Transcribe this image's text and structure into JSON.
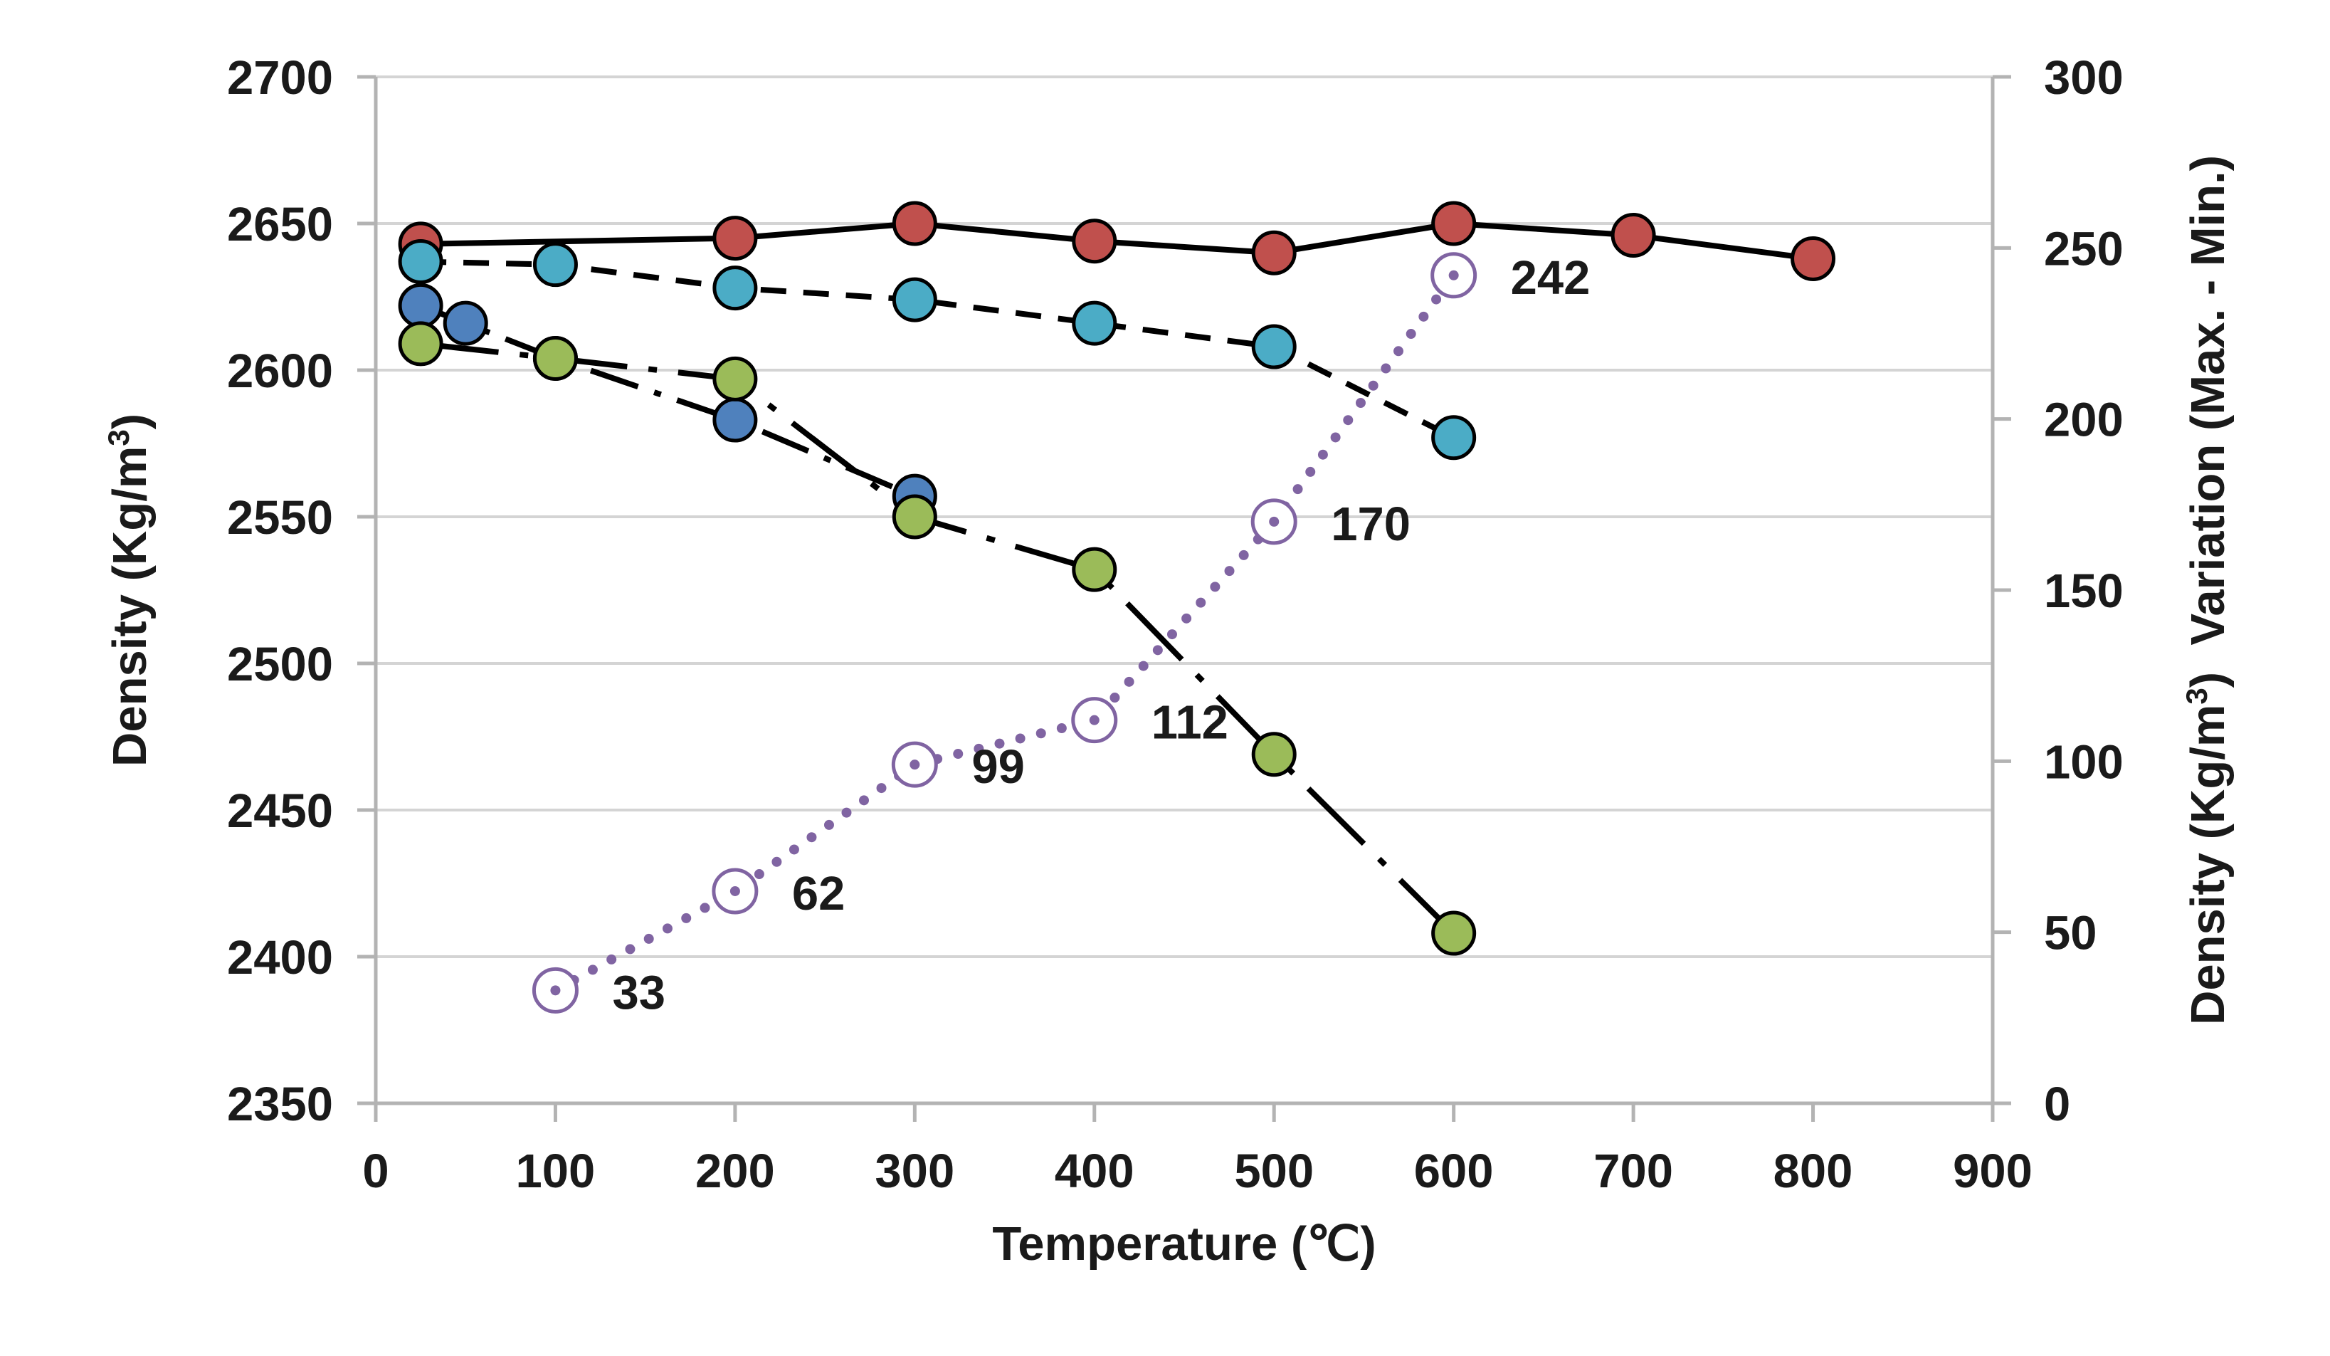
{
  "chart_data": {
    "type": "line",
    "title": "",
    "xlabel": "Temperature (℃)",
    "ylabel": "Density (Kg/m3)",
    "ylabel_parts": {
      "base": "Density (Kg/m",
      "sup": "3",
      "end": ")"
    },
    "y2label": "Density (Kg/m3)  Variation (Max. - Min.)",
    "y2label_parts": {
      "base": "Density (Kg/m",
      "sup": "3",
      "end": ")  Variation (Max. - Min.)"
    },
    "xlim": [
      0,
      900
    ],
    "ylim": [
      2350,
      2700
    ],
    "y2lim": [
      0,
      300
    ],
    "x_ticks": [
      0,
      100,
      200,
      300,
      400,
      500,
      600,
      700,
      800,
      900
    ],
    "y_ticks": [
      2350,
      2400,
      2450,
      2500,
      2550,
      2600,
      2650,
      2700
    ],
    "y2_ticks": [
      0,
      50,
      100,
      150,
      200,
      250,
      300
    ],
    "grid": "horizontal",
    "series": [
      {
        "name": "red series",
        "axis": "left",
        "line": "solid",
        "color": "#c0504d",
        "x": [
          25,
          200,
          300,
          400,
          500,
          600,
          700,
          800
        ],
        "y": [
          2643,
          2645,
          2650,
          2644,
          2640,
          2650,
          2646,
          2638
        ]
      },
      {
        "name": "cyan series",
        "axis": "left",
        "line": "dashed",
        "color": "#4bacc6",
        "x": [
          25,
          100,
          200,
          300,
          400,
          500,
          600
        ],
        "y": [
          2637,
          2636,
          2628,
          2624,
          2616,
          2608,
          2577
        ]
      },
      {
        "name": "blue series",
        "axis": "left",
        "line": "dash-dot",
        "color": "#4f81bd",
        "x": [
          25,
          50,
          100,
          200,
          300
        ],
        "y": [
          2622,
          2616,
          2604,
          2583,
          2557
        ]
      },
      {
        "name": "green series",
        "axis": "left",
        "line": "long-dash-dot",
        "color": "#9bbb59",
        "x": [
          25,
          100,
          200,
          300,
          400,
          500,
          600
        ],
        "y": [
          2609,
          2604,
          2597,
          2550,
          2532,
          2469,
          2408
        ]
      },
      {
        "name": "density variation",
        "axis": "right",
        "line": "dotted",
        "color": "#8064a2",
        "x": [
          100,
          200,
          300,
          400,
          500,
          600
        ],
        "y": [
          33,
          62,
          99,
          112,
          170,
          242
        ],
        "labels": [
          "33",
          "62",
          "99",
          "112",
          "170",
          "242"
        ]
      }
    ]
  }
}
